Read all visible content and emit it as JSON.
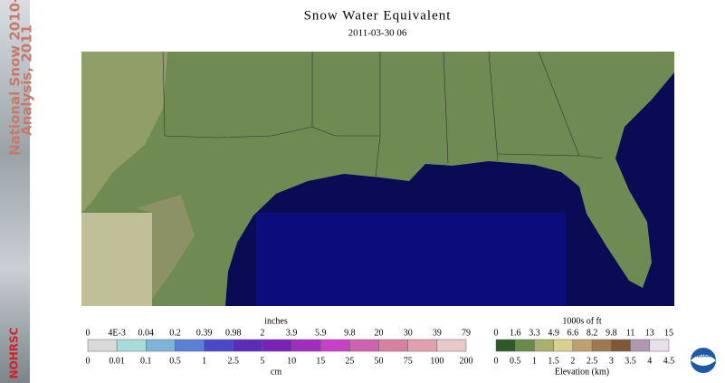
{
  "header": {
    "title": "Snow Water Equivalent",
    "date": "2011-03-30 06"
  },
  "banner": {
    "lines": [
      "National Snow 2010-",
      "Analysis, 2011"
    ],
    "org": "NOHRSC"
  },
  "snow_legend": {
    "top_unit": "inches",
    "bottom_unit": "cm",
    "top_labels": [
      "0",
      "4E-3",
      "0.04",
      "0.2",
      "0.39",
      "0.98",
      "2",
      "3.9",
      "5.9",
      "9.8",
      "20",
      "30",
      "39",
      "79"
    ],
    "bottom_labels": [
      "0",
      "0.01",
      "0.1",
      "0.5",
      "1",
      "2.5",
      "5",
      "10",
      "15",
      "25",
      "50",
      "75",
      "100",
      "200"
    ]
  },
  "elevation_legend": {
    "top_unit": "1000s of ft",
    "bottom_unit": "Elevation (km)",
    "top_labels": [
      "0",
      "1.6",
      "3.3",
      "4.9",
      "6.6",
      "8.2",
      "9.8",
      "11",
      "13",
      "15"
    ],
    "bottom_labels": [
      "0",
      "0.5",
      "1",
      "1.5",
      "2",
      "2.5",
      "3",
      "3.5",
      "4",
      "4.5"
    ]
  },
  "logo": "NOAA"
}
